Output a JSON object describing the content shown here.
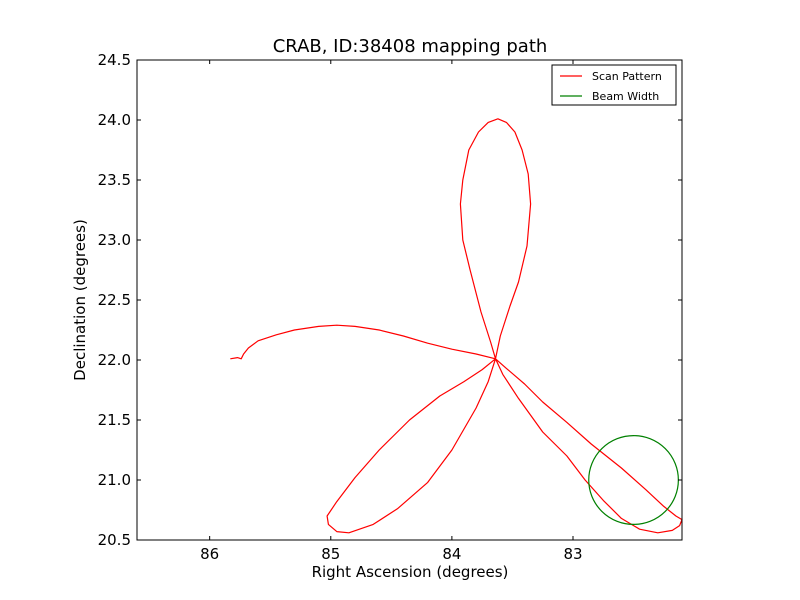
{
  "chart_data": {
    "type": "line",
    "title": "CRAB, ID:38408 mapping path",
    "xlabel": "Right Ascension (degrees)",
    "ylabel": "Declination (degrees)",
    "xlim": [
      86.6,
      82.1
    ],
    "ylim": [
      20.5,
      24.5
    ],
    "x_inverted": true,
    "xticks": [
      86,
      85,
      84,
      83
    ],
    "xtick_labels": [
      "86",
      "85",
      "84",
      "83"
    ],
    "yticks": [
      20.5,
      21.0,
      21.5,
      22.0,
      22.5,
      23.0,
      23.5,
      24.0,
      24.5
    ],
    "ytick_labels": [
      "20.5",
      "21.0",
      "21.5",
      "22.0",
      "22.5",
      "23.0",
      "23.5",
      "24.0",
      "24.5"
    ],
    "grid": false,
    "legend_position": "top-right",
    "series": [
      {
        "name": "Scan Pattern",
        "color": "#ff0000",
        "points": [
          [
            85.83,
            22.01
          ],
          [
            85.77,
            22.02
          ],
          [
            85.74,
            22.01
          ],
          [
            85.72,
            22.05
          ],
          [
            85.68,
            22.1
          ],
          [
            85.6,
            22.16
          ],
          [
            85.45,
            22.21
          ],
          [
            85.3,
            22.25
          ],
          [
            85.1,
            22.28
          ],
          [
            84.95,
            22.29
          ],
          [
            84.8,
            22.28
          ],
          [
            84.6,
            22.25
          ],
          [
            84.4,
            22.2
          ],
          [
            84.2,
            22.14
          ],
          [
            84.0,
            22.09
          ],
          [
            83.8,
            22.05
          ],
          [
            83.64,
            22.01
          ],
          [
            83.6,
            22.2
          ],
          [
            83.52,
            22.45
          ],
          [
            83.45,
            22.65
          ],
          [
            83.38,
            22.95
          ],
          [
            83.35,
            23.3
          ],
          [
            83.37,
            23.55
          ],
          [
            83.42,
            23.75
          ],
          [
            83.48,
            23.9
          ],
          [
            83.55,
            23.98
          ],
          [
            83.62,
            24.01
          ],
          [
            83.7,
            23.98
          ],
          [
            83.78,
            23.9
          ],
          [
            83.86,
            23.75
          ],
          [
            83.91,
            23.5
          ],
          [
            83.93,
            23.3
          ],
          [
            83.91,
            23.0
          ],
          [
            83.85,
            22.75
          ],
          [
            83.76,
            22.4
          ],
          [
            83.68,
            22.15
          ],
          [
            83.64,
            22.01
          ],
          [
            83.55,
            21.93
          ],
          [
            83.4,
            21.8
          ],
          [
            83.25,
            21.65
          ],
          [
            83.05,
            21.48
          ],
          [
            82.85,
            21.3
          ],
          [
            82.6,
            21.1
          ],
          [
            82.4,
            20.92
          ],
          [
            82.25,
            20.78
          ],
          [
            82.15,
            20.7
          ],
          [
            82.1,
            20.67
          ],
          [
            82.12,
            20.62
          ],
          [
            82.18,
            20.58
          ],
          [
            82.3,
            20.56
          ],
          [
            82.45,
            20.59
          ],
          [
            82.6,
            20.68
          ],
          [
            82.75,
            20.83
          ],
          [
            82.9,
            21.0
          ],
          [
            83.05,
            21.2
          ],
          [
            83.25,
            21.4
          ],
          [
            83.45,
            21.68
          ],
          [
            83.58,
            21.88
          ],
          [
            83.64,
            22.01
          ],
          [
            83.75,
            21.92
          ],
          [
            83.9,
            21.82
          ],
          [
            84.1,
            21.7
          ],
          [
            84.35,
            21.5
          ],
          [
            84.6,
            21.25
          ],
          [
            84.8,
            21.02
          ],
          [
            84.95,
            20.82
          ],
          [
            85.03,
            20.7
          ],
          [
            85.02,
            20.63
          ],
          [
            84.95,
            20.57
          ],
          [
            84.85,
            20.56
          ],
          [
            84.65,
            20.63
          ],
          [
            84.45,
            20.76
          ],
          [
            84.2,
            20.98
          ],
          [
            84.0,
            21.25
          ],
          [
            83.8,
            21.6
          ],
          [
            83.7,
            21.82
          ],
          [
            83.64,
            22.01
          ]
        ]
      },
      {
        "name": "Beam Width",
        "color": "#008000",
        "center": [
          82.5,
          21.0
        ],
        "radius_deg": 0.37
      }
    ]
  }
}
